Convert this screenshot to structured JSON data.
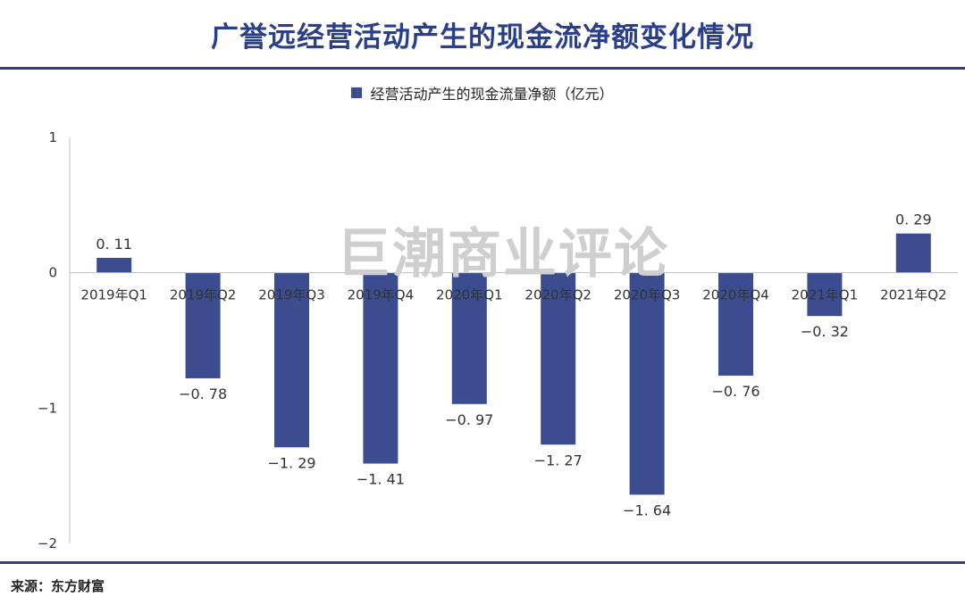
{
  "title": "广誉远经营活动产生的现金流净额变化情况",
  "watermark": "巨潮商业评论",
  "source": "来源：东方财富",
  "colors": {
    "bar": "#3b4d8f",
    "title": "#2a3f8c",
    "rule": "#2e3f80"
  },
  "chart_data": {
    "type": "bar",
    "categories": [
      "2019年Q1",
      "2019年Q2",
      "2019年Q3",
      "2019年Q4",
      "2020年Q1",
      "2020年Q2",
      "2020年Q3",
      "2020年Q4",
      "2021年Q1",
      "2021年Q2"
    ],
    "series": [
      {
        "name": "经营活动产生的现金流量净额（亿元）",
        "values": [
          0.11,
          -0.78,
          -1.29,
          -1.41,
          -0.97,
          -1.27,
          -1.64,
          -0.76,
          -0.32,
          0.29
        ]
      }
    ],
    "value_labels": [
      "0. 11",
      "−0. 78",
      "−1. 29",
      "−1. 41",
      "−0. 97",
      "−1. 27",
      "−1. 64",
      "−0. 76",
      "−0. 32",
      "0. 29"
    ],
    "yticks": [
      1,
      0,
      -1,
      -2
    ],
    "ytick_labels": [
      "1",
      "0",
      "−1",
      "−2"
    ],
    "ylim": [
      -2,
      1
    ],
    "legend_position": "top-center",
    "grid": false
  }
}
